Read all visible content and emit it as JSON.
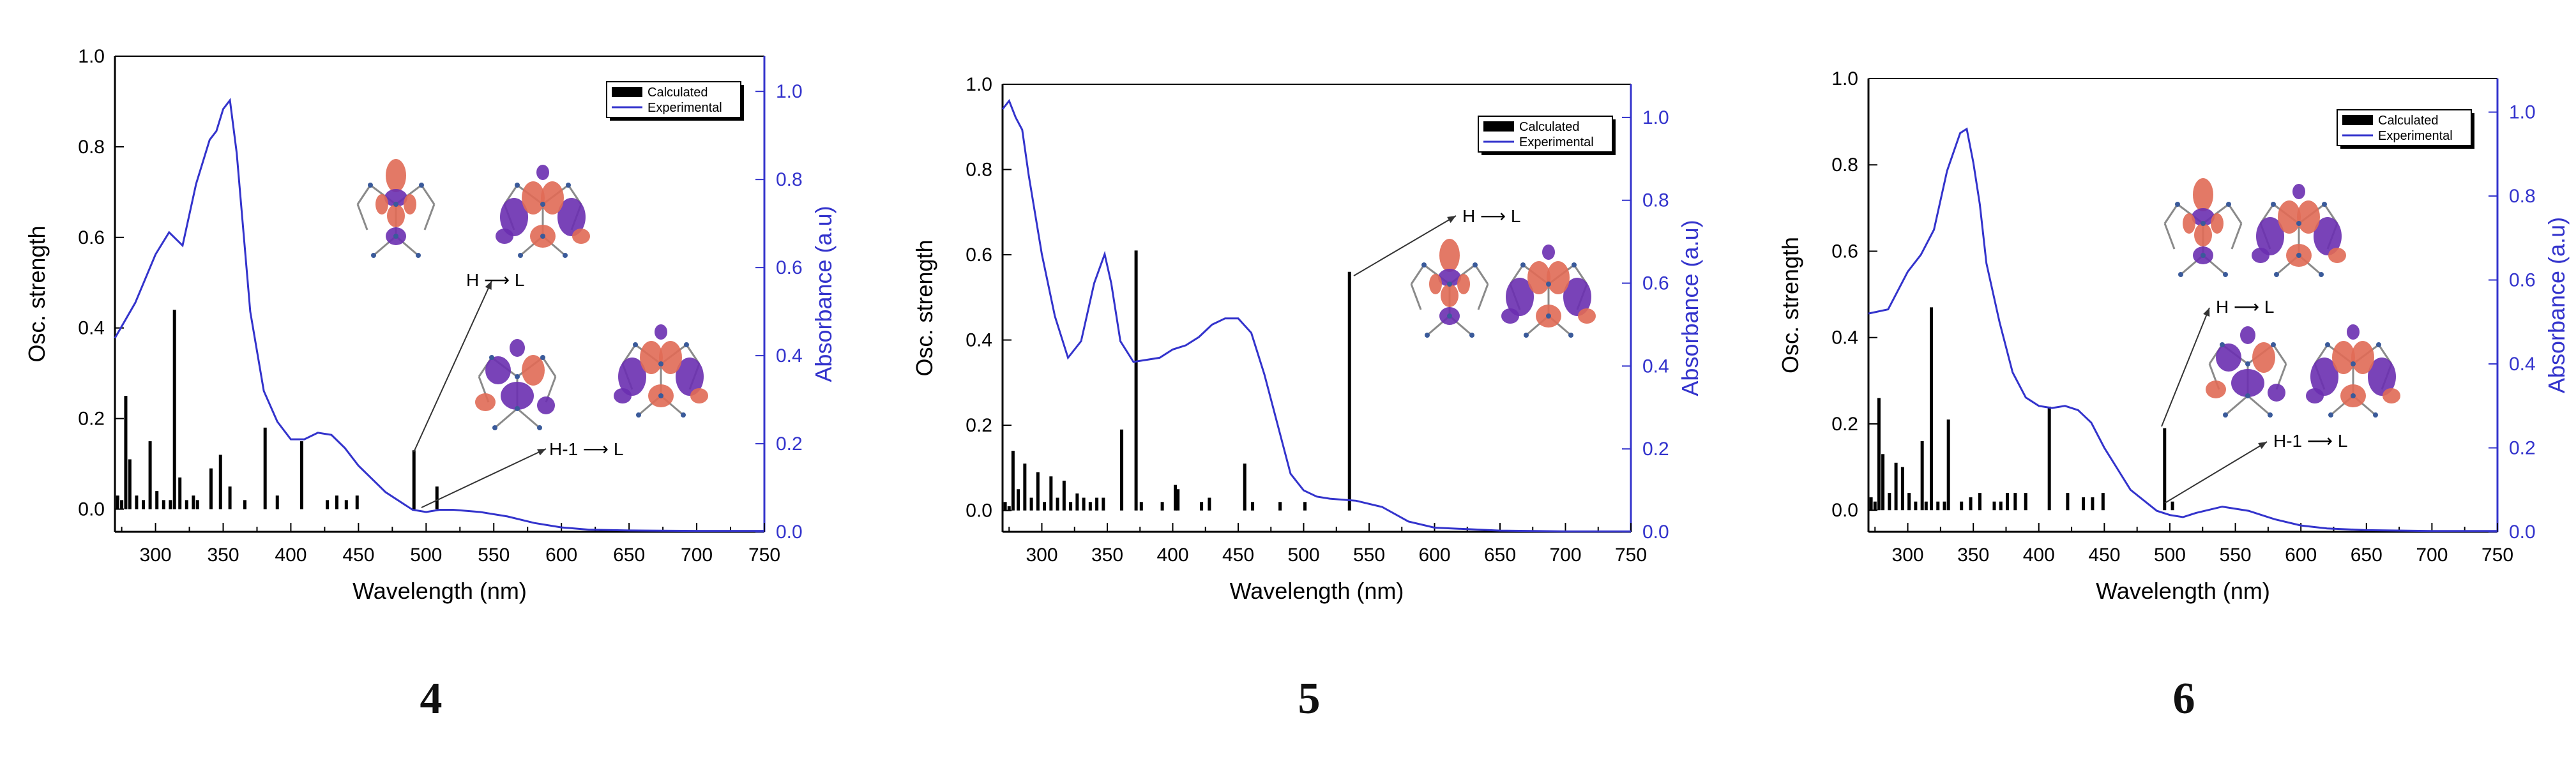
{
  "colors": {
    "calculated": "#000000",
    "experimental": "#3333cc",
    "right_axis": "#3333cc",
    "orbital_red": "#e06a55",
    "orbital_purple": "#6a2fb0"
  },
  "chart_data": [
    {
      "type": "bar+line",
      "panel_label": "4",
      "xlabel": "Wavelength (nm)",
      "ylabel_left": "Osc. strength",
      "ylabel_right": "Absorbance (a.u)",
      "xlim": [
        270,
        750
      ],
      "ylim_left": [
        -0.05,
        1.0
      ],
      "ylim_right": [
        0,
        1.08
      ],
      "xticks": [
        "300",
        "350",
        "400",
        "450",
        "500",
        "550",
        "600",
        "650",
        "700",
        "750"
      ],
      "yticks_left": [
        "0.0",
        "0.2",
        "0.4",
        "0.6",
        "0.8",
        "1.0"
      ],
      "yticks_right": [
        "0.0",
        "0.2",
        "0.4",
        "0.6",
        "0.8",
        "1.0"
      ],
      "legend": [
        "Calculated",
        "Experimental"
      ],
      "annotations": [
        "H ⟶ L",
        "H-1 ⟶ L"
      ],
      "bars": {
        "x": [
          272,
          275,
          278,
          281,
          286,
          291,
          296,
          301,
          306,
          311,
          314,
          318,
          323,
          328,
          331,
          341,
          348,
          355,
          366,
          381,
          390,
          408,
          427,
          434,
          441,
          449,
          491,
          508
        ],
        "y": [
          0.03,
          0.02,
          0.25,
          0.11,
          0.03,
          0.02,
          0.15,
          0.04,
          0.02,
          0.02,
          0.44,
          0.07,
          0.02,
          0.03,
          0.02,
          0.09,
          0.12,
          0.05,
          0.02,
          0.18,
          0.03,
          0.15,
          0.02,
          0.03,
          0.02,
          0.03,
          0.13,
          0.05
        ]
      },
      "line": {
        "x": [
          270,
          285,
          300,
          310,
          320,
          330,
          340,
          345,
          350,
          355,
          360,
          370,
          380,
          390,
          400,
          410,
          420,
          430,
          440,
          450,
          470,
          490,
          500,
          510,
          520,
          540,
          560,
          580,
          600,
          620,
          650,
          700,
          750
        ],
        "y": [
          0.44,
          0.52,
          0.63,
          0.68,
          0.65,
          0.79,
          0.89,
          0.91,
          0.96,
          0.98,
          0.86,
          0.5,
          0.32,
          0.25,
          0.21,
          0.21,
          0.225,
          0.22,
          0.19,
          0.15,
          0.09,
          0.05,
          0.045,
          0.05,
          0.05,
          0.045,
          0.035,
          0.02,
          0.01,
          0.005,
          0.003,
          0.002,
          0.002
        ]
      }
    },
    {
      "type": "bar+line",
      "panel_label": "5",
      "xlabel": "Wavelength (nm)",
      "ylabel_left": "Osc. strength",
      "ylabel_right": "Absorbance (a.u)",
      "xlim": [
        270,
        750
      ],
      "ylim_left": [
        -0.05,
        1.0
      ],
      "ylim_right": [
        0,
        1.08
      ],
      "xticks": [
        "300",
        "350",
        "400",
        "450",
        "500",
        "550",
        "600",
        "650",
        "700",
        "750"
      ],
      "yticks_left": [
        "0.0",
        "0.2",
        "0.4",
        "0.6",
        "0.8",
        "1.0"
      ],
      "yticks_right": [
        "0.0",
        "0.2",
        "0.4",
        "0.6",
        "0.8",
        "1.0"
      ],
      "legend": [
        "Calculated",
        "Experimental"
      ],
      "annotations": [
        "H ⟶ L"
      ],
      "bars": {
        "x": [
          272,
          275,
          278,
          282,
          287,
          292,
          297,
          302,
          307,
          312,
          317,
          322,
          327,
          332,
          337,
          342,
          347,
          361,
          372,
          376,
          392,
          402,
          404,
          422,
          428,
          455,
          461,
          482,
          501,
          535
        ],
        "y": [
          0.02,
          0.01,
          0.14,
          0.05,
          0.11,
          0.03,
          0.09,
          0.02,
          0.08,
          0.03,
          0.07,
          0.02,
          0.04,
          0.03,
          0.02,
          0.03,
          0.03,
          0.19,
          0.61,
          0.02,
          0.02,
          0.06,
          0.05,
          0.02,
          0.03,
          0.11,
          0.02,
          0.02,
          0.02,
          0.56
        ]
      },
      "line": {
        "x": [
          270,
          275,
          280,
          285,
          290,
          300,
          310,
          320,
          330,
          340,
          348,
          353,
          360,
          370,
          380,
          390,
          400,
          410,
          420,
          430,
          440,
          450,
          460,
          470,
          480,
          490,
          500,
          510,
          520,
          540,
          560,
          580,
          600,
          650,
          700,
          750
        ],
        "y": [
          1.02,
          1.04,
          1.0,
          0.97,
          0.86,
          0.67,
          0.52,
          0.42,
          0.46,
          0.6,
          0.67,
          0.6,
          0.46,
          0.41,
          0.415,
          0.42,
          0.44,
          0.45,
          0.47,
          0.5,
          0.515,
          0.515,
          0.48,
          0.38,
          0.26,
          0.14,
          0.1,
          0.085,
          0.08,
          0.075,
          0.06,
          0.025,
          0.01,
          0.003,
          0.001,
          0.001
        ]
      }
    },
    {
      "type": "bar+line",
      "panel_label": "6",
      "xlabel": "Wavelength (nm)",
      "ylabel_left": "Osc. strength",
      "ylabel_right": "Absorbance (a.u)",
      "xlim": [
        270,
        750
      ],
      "ylim_left": [
        -0.05,
        1.0
      ],
      "ylim_right": [
        0,
        1.08
      ],
      "xticks": [
        "300",
        "350",
        "400",
        "450",
        "500",
        "550",
        "600",
        "650",
        "700",
        "750"
      ],
      "yticks_left": [
        "0.0",
        "0.2",
        "0.4",
        "0.6",
        "0.8",
        "1.0"
      ],
      "yticks_right": [
        "0.0",
        "0.2",
        "0.4",
        "0.6",
        "0.8",
        "1.0"
      ],
      "legend": [
        "Calculated",
        "Experimental"
      ],
      "annotations": [
        "H ⟶ L",
        "H-1 ⟶ L"
      ],
      "bars": {
        "x": [
          272,
          275,
          278,
          281,
          286,
          291,
          296,
          301,
          306,
          311,
          314,
          318,
          323,
          328,
          331,
          341,
          348,
          355,
          366,
          371,
          376,
          382,
          390,
          408,
          422,
          434,
          441,
          449,
          496,
          502
        ],
        "y": [
          0.03,
          0.02,
          0.26,
          0.13,
          0.04,
          0.11,
          0.1,
          0.04,
          0.02,
          0.16,
          0.02,
          0.47,
          0.02,
          0.02,
          0.21,
          0.02,
          0.03,
          0.04,
          0.02,
          0.02,
          0.04,
          0.04,
          0.04,
          0.24,
          0.04,
          0.03,
          0.03,
          0.04,
          0.19,
          0.02
        ]
      },
      "line": {
        "x": [
          270,
          285,
          300,
          310,
          320,
          330,
          340,
          345,
          350,
          355,
          360,
          370,
          380,
          390,
          400,
          410,
          420,
          430,
          440,
          450,
          470,
          490,
          500,
          510,
          520,
          540,
          560,
          580,
          600,
          620,
          650,
          700,
          750
        ],
        "y": [
          0.52,
          0.53,
          0.62,
          0.66,
          0.72,
          0.86,
          0.95,
          0.96,
          0.88,
          0.78,
          0.64,
          0.5,
          0.38,
          0.32,
          0.3,
          0.295,
          0.3,
          0.29,
          0.26,
          0.2,
          0.1,
          0.05,
          0.04,
          0.035,
          0.045,
          0.06,
          0.05,
          0.03,
          0.015,
          0.008,
          0.004,
          0.002,
          0.002
        ]
      }
    }
  ]
}
